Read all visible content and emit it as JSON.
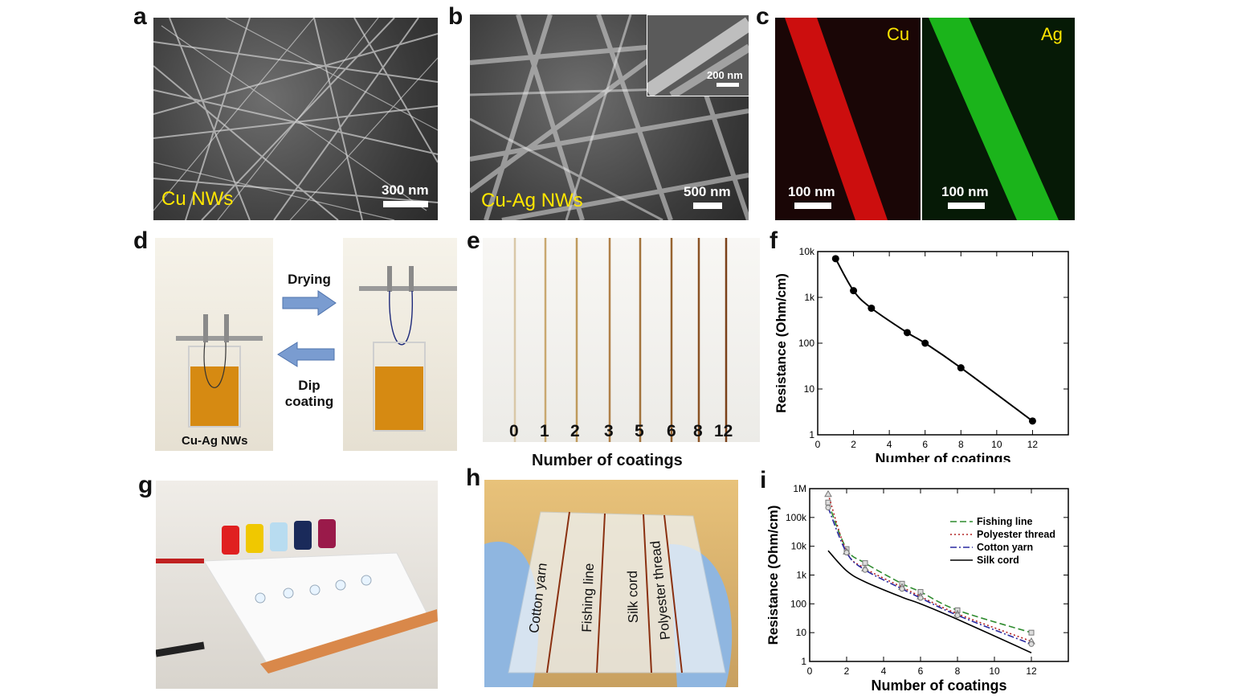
{
  "panel_labels": {
    "a": "a",
    "b": "b",
    "c": "c",
    "d": "d",
    "e": "e",
    "f": "f",
    "g": "g",
    "h": "h",
    "i": "i"
  },
  "panel_a": {
    "caption": "Cu NWs",
    "scale": "300 nm"
  },
  "panel_b": {
    "caption": "Cu-Ag NWs",
    "scale": "500 nm",
    "inset_scale": "200 nm"
  },
  "panel_c": {
    "left_element": "Cu",
    "right_element": "Ag",
    "left_scale": "100 nm",
    "right_scale": "100 nm",
    "colors": {
      "Cu": "#e01010",
      "Ag": "#20d020"
    }
  },
  "panel_d": {
    "arrow_top": "Drying",
    "arrow_bottom_line1": "Dip",
    "arrow_bottom_line2": "coating",
    "beaker_caption": "Cu-Ag NWs"
  },
  "panel_e": {
    "coatings": [
      "0",
      "1",
      "2",
      "3",
      "5",
      "6",
      "8",
      "12"
    ],
    "axis_label": "Number of coatings"
  },
  "panel_h": {
    "threads": [
      "Cotton yarn",
      "Fishing line",
      "Silk cord",
      "Polyester thread"
    ]
  },
  "chart_data": [
    {
      "panel": "f",
      "type": "line",
      "xlabel": "Number of coatings",
      "ylabel": "Resistance (Ohm/cm)",
      "xlim": [
        0,
        14
      ],
      "ylim": [
        1,
        10000
      ],
      "yscale": "log",
      "xticks": [
        "0",
        "2",
        "4",
        "6",
        "8",
        "10",
        "12"
      ],
      "yticks": [
        "1",
        "10",
        "100",
        "1k",
        "10k"
      ],
      "x": [
        1,
        2,
        3,
        5,
        6,
        8,
        12
      ],
      "y": [
        7000,
        1400,
        580,
        170,
        100,
        29,
        2
      ],
      "color": "#000000"
    },
    {
      "panel": "i",
      "type": "line",
      "xlabel": "Number of coatings",
      "ylabel": "Resistance (Ohm/cm)",
      "xlim": [
        0,
        14
      ],
      "ylim": [
        1,
        1000000
      ],
      "yscale": "log",
      "xticks": [
        "0",
        "2",
        "4",
        "6",
        "8",
        "10",
        "12"
      ],
      "yticks": [
        "1",
        "10",
        "100",
        "1k",
        "10k",
        "100k",
        "1M"
      ],
      "legend_position": "top-right",
      "x": [
        1,
        2,
        3,
        5,
        6,
        8,
        12
      ],
      "series": [
        {
          "name": "Fishing line",
          "values": [
            330000,
            8000,
            2600,
            500,
            260,
            60,
            10
          ],
          "color": "#2e8b2e",
          "dash": "8,4",
          "marker": "square"
        },
        {
          "name": "Polyester thread",
          "values": [
            650000,
            6500,
            1700,
            380,
            180,
            45,
            5
          ],
          "color": "#b22222",
          "dash": "2,3",
          "marker": "triangle"
        },
        {
          "name": "Cotton yarn",
          "values": [
            220000,
            6000,
            1500,
            330,
            160,
            40,
            4
          ],
          "color": "#2a2aa0",
          "dash": "8,3,2,3",
          "marker": "circle"
        },
        {
          "name": "Silk cord",
          "values": [
            7000,
            1400,
            580,
            170,
            100,
            29,
            2
          ],
          "color": "#000000",
          "dash": "",
          "marker": "none"
        }
      ]
    }
  ]
}
